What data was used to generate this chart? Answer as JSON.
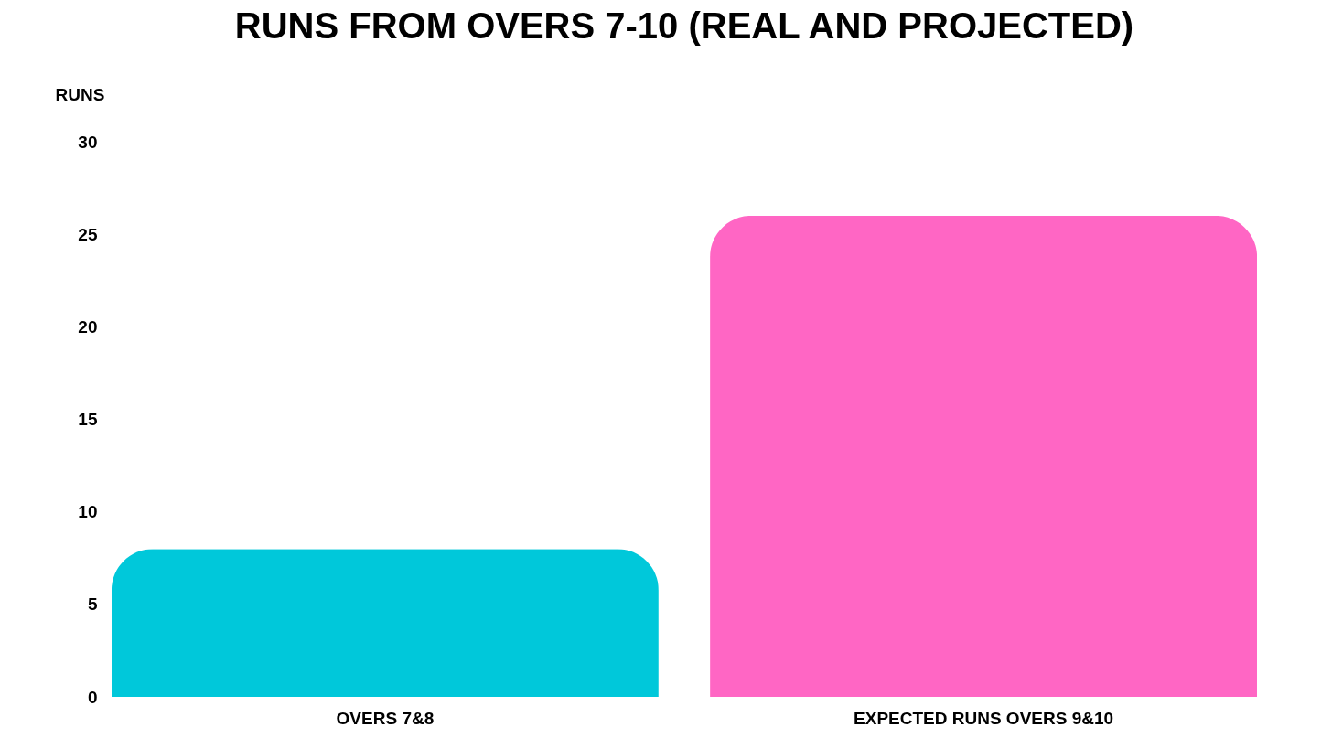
{
  "chart_data": {
    "type": "bar",
    "title": "RUNS FROM OVERS 7-10 (REAL AND PROJECTED)",
    "ylabel": "RUNS",
    "categories": [
      "OVERS 7&8",
      "EXPECTED RUNS OVERS 9&10"
    ],
    "values": [
      8,
      26
    ],
    "colors": [
      "#00c8da",
      "#ff66c4"
    ],
    "ylim": [
      0,
      30
    ],
    "yticks": [
      0,
      5,
      10,
      15,
      20,
      25,
      30
    ],
    "grid": false
  }
}
